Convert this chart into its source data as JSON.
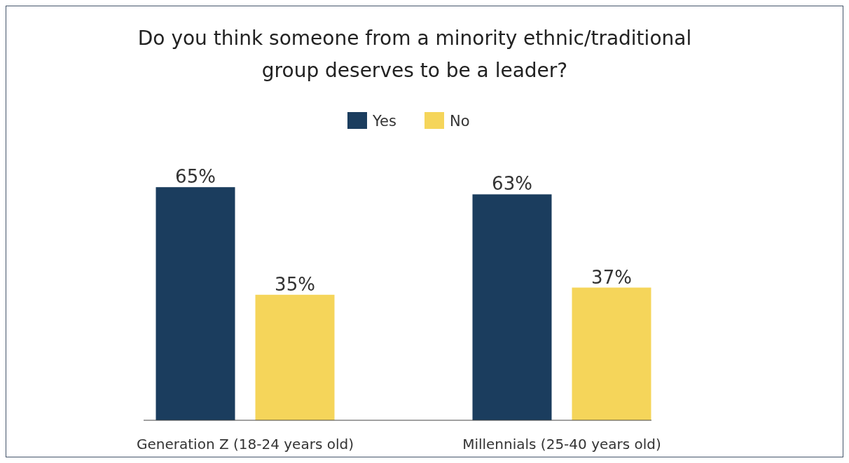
{
  "chart_data": {
    "type": "bar",
    "title": "Do you think someone from a minority ethnic/traditional group deserves to be a leader?",
    "categories": [
      "Generation Z (18-24 years old)",
      "Millennials (25-40 years old)"
    ],
    "series": [
      {
        "name": "Yes",
        "color": "#1b3d5e",
        "values": [
          65,
          63
        ],
        "value_labels": [
          "65%",
          "63%"
        ]
      },
      {
        "name": "No",
        "color": "#f5d55a",
        "values": [
          35,
          37
        ],
        "value_labels": [
          "35%",
          "37%"
        ]
      }
    ],
    "legend": "top"
  }
}
